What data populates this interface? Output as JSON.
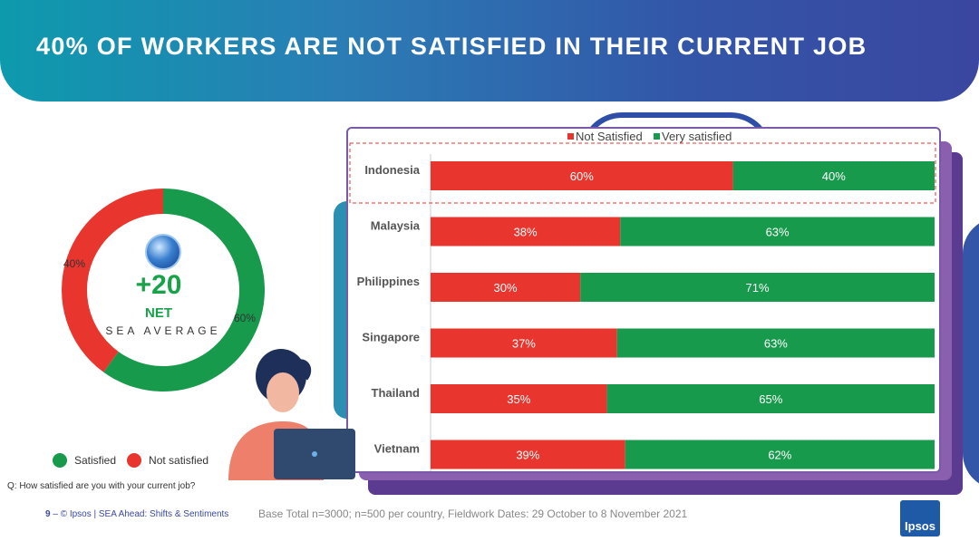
{
  "title": "40% OF WORKERS ARE NOT SATISFIED IN THEIR CURRENT JOB",
  "colors": {
    "not_satisfied": "#e8352e",
    "satisfied": "#179a4c",
    "header_start": "#0d9aad",
    "header_end": "#3a46a0"
  },
  "sea_average": {
    "net_value": "+20",
    "net_label": "NET",
    "subtitle": "SEA AVERAGE",
    "not_satisfied_label": "40%",
    "satisfied_label": "60%"
  },
  "legend_left": {
    "satisfied": "Satisfied",
    "not_satisfied": "Not satisfied"
  },
  "question": "Q: How satisfied are you with your current job?",
  "footer": {
    "page": "9",
    "sep": " – ",
    "text": "© Ipsos | SEA Ahead: Shifts & Sentiments"
  },
  "base": "Base Total n=3000; n=500 per country, Fieldwork Dates: 29 October to 8 November  2021",
  "logo": "Ipsos",
  "icons": {
    "globe": "globe-icon",
    "person": "stressed-worker-illustration"
  },
  "chart_data": [
    {
      "type": "pie",
      "categories": [
        "Not satisfied",
        "Satisfied"
      ],
      "values": [
        40,
        60
      ],
      "labels": [
        "40%",
        "60%"
      ]
    },
    {
      "type": "bar",
      "orientation": "horizontal",
      "stacked": true,
      "legend_position": "top",
      "categories": [
        "Indonesia",
        "Malaysia",
        "Philippines",
        "Singapore",
        "Thailand",
        "Vietnam"
      ],
      "highlighted": "Indonesia",
      "series": [
        {
          "name": "Not Satisfied",
          "values": [
            60,
            38,
            30,
            37,
            35,
            39
          ],
          "labels": [
            "60%",
            "38%",
            "30%",
            "37%",
            "35%",
            "39%"
          ]
        },
        {
          "name": "Very satisfied",
          "values": [
            40,
            63,
            71,
            63,
            65,
            62
          ],
          "labels": [
            "40%",
            "63%",
            "71%",
            "63%",
            "65%",
            "62%"
          ]
        }
      ]
    }
  ]
}
